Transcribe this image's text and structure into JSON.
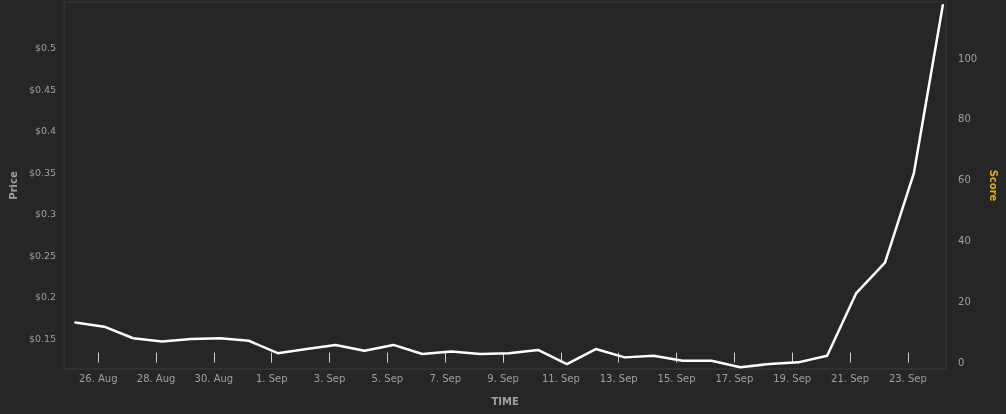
{
  "chart_data": {
    "type": "line",
    "xlabel": "TIME",
    "ylabel": "Price",
    "y2label": "Score",
    "x": [
      "--08-25T05:00",
      "--08-26T05:00",
      "--08-27T05:00",
      "--08-28T05:00",
      "--08-29T05:00",
      "--08-30T05:00",
      "--08-31T05:00",
      "--09-01T05:00",
      "--09-02T05:00",
      "--09-03T05:00",
      "--09-04T05:00",
      "--09-05T05:00",
      "--09-06T05:00",
      "--09-07T05:00",
      "--09-08T05:00",
      "--09-09T05:00",
      "--09-10T05:00",
      "--09-11T05:00",
      "--09-12T05:00",
      "--09-13T05:00",
      "--09-14T05:00",
      "--09-15T05:00",
      "--09-16T05:00",
      "--09-17T05:00",
      "--09-18T05:00",
      "--09-19T05:00",
      "--09-20T05:00",
      "--09-21T05:00",
      "--09-22T05:00",
      "--09-23T05:00",
      "--09-24T05:00"
    ],
    "series": [
      {
        "color": "#ffffff",
        "axis": "y",
        "values": [
          0.169,
          0.164,
          0.15,
          0.146,
          0.149,
          0.15,
          0.147,
          0.132,
          0.137,
          0.142,
          0.135,
          0.142,
          0.131,
          0.134,
          0.131,
          0.132,
          0.136,
          0.119,
          0.137,
          0.127,
          0.129,
          0.123,
          0.123,
          0.115,
          0.119,
          0.121,
          0.129,
          0.204,
          0.241,
          0.349,
          0.551
        ]
      }
    ],
    "xticks": [
      {
        "value": "--08-26",
        "label": "26. Aug"
      },
      {
        "value": "--08-28",
        "label": "28. Aug"
      },
      {
        "value": "--08-30",
        "label": "30. Aug"
      },
      {
        "value": "--09-01",
        "label": "1. Sep"
      },
      {
        "value": "--09-03",
        "label": "3. Sep"
      },
      {
        "value": "--09-05",
        "label": "5. Sep"
      },
      {
        "value": "--09-07",
        "label": "7. Sep"
      },
      {
        "value": "--09-09",
        "label": "9. Sep"
      },
      {
        "value": "--09-11",
        "label": "11. Sep"
      },
      {
        "value": "--09-13",
        "label": "13. Sep"
      },
      {
        "value": "--09-15",
        "label": "15. Sep"
      },
      {
        "value": "--09-17",
        "label": "17. Sep"
      },
      {
        "value": "--09-19",
        "label": "19. Sep"
      },
      {
        "value": "--09-21",
        "label": "21. Sep"
      },
      {
        "value": "--09-23",
        "label": "23. Sep"
      }
    ],
    "xlim": [
      "--08-24T19:40",
      "--09-24T07:40"
    ],
    "ylim": [
      0.113,
      0.555
    ],
    "y2lim": [
      -2.1,
      118.4
    ],
    "yticks": [
      {
        "value": 0.15,
        "label": "$0.15"
      },
      {
        "value": 0.2,
        "label": "$0.2"
      },
      {
        "value": 0.25,
        "label": "$0.25"
      },
      {
        "value": 0.3,
        "label": "$0.3"
      },
      {
        "value": 0.35,
        "label": "$0.35"
      },
      {
        "value": 0.4,
        "label": "$0.4"
      },
      {
        "value": 0.45,
        "label": "$0.45"
      },
      {
        "value": 0.5,
        "label": "$0.5"
      }
    ],
    "y2ticks": [
      0,
      20,
      40,
      60,
      80,
      100
    ],
    "marker": "none",
    "line_style": "solid"
  }
}
